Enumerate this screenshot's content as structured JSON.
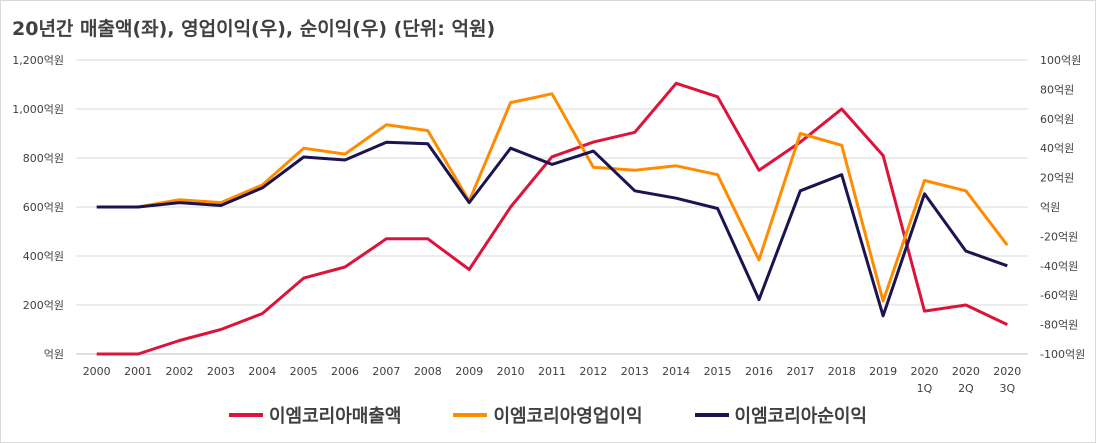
{
  "title": "20년간 매출액(좌), 영업이익(우), 순이익(우) (단위: 억원)",
  "chart_data": {
    "type": "line",
    "title": "20년간 매출액(좌), 영업이익(우), 순이익(우) (단위: 억원)",
    "categories": [
      "2000",
      "2001",
      "2002",
      "2003",
      "2004",
      "2005",
      "2006",
      "2007",
      "2008",
      "2009",
      "2010",
      "2011",
      "2012",
      "2013",
      "2014",
      "2015",
      "2016",
      "2017",
      "2018",
      "2019",
      "2020\n1Q",
      "2020\n2Q",
      "2020\n3Q"
    ],
    "left_axis": {
      "ylim": [
        0,
        1200
      ],
      "tick_labels": [
        "억원",
        "200억원",
        "400억원",
        "600억원",
        "800억원",
        "1,000억원",
        "1,200억원"
      ]
    },
    "right_axis": {
      "ylim": [
        -100,
        100
      ],
      "tick_labels": [
        "-100억원",
        "-80억원",
        "-60억원",
        "-40억원",
        "-20억원",
        "억원",
        "20억원",
        "40억원",
        "60억원",
        "80억원",
        "100억원"
      ]
    },
    "series": [
      {
        "name": "이엠코리아매출액",
        "axis": "left",
        "color": "#dc143c",
        "values": [
          0,
          0,
          55,
          100,
          165,
          310,
          355,
          470,
          470,
          345,
          600,
          805,
          865,
          905,
          1105,
          1050,
          750,
          865,
          1000,
          810,
          175,
          200,
          120
        ]
      },
      {
        "name": "이엠코리아영업이익",
        "axis": "right",
        "color": "#ff8c00",
        "values": [
          0,
          0,
          5,
          3,
          15,
          40,
          36,
          56,
          52,
          4,
          71,
          77,
          27,
          25,
          28,
          22,
          -36,
          50,
          42,
          -64,
          18,
          11,
          -26
        ]
      },
      {
        "name": "이엠코리아순이익",
        "axis": "right",
        "color": "#1a1450",
        "values": [
          0,
          0,
          3,
          1,
          13,
          34,
          32,
          44,
          43,
          3,
          40,
          29,
          38,
          11,
          6,
          -1,
          -63,
          11,
          22,
          -74,
          9,
          -30,
          -40
        ]
      }
    ],
    "grid": "horizontal",
    "legend": "bottom"
  }
}
